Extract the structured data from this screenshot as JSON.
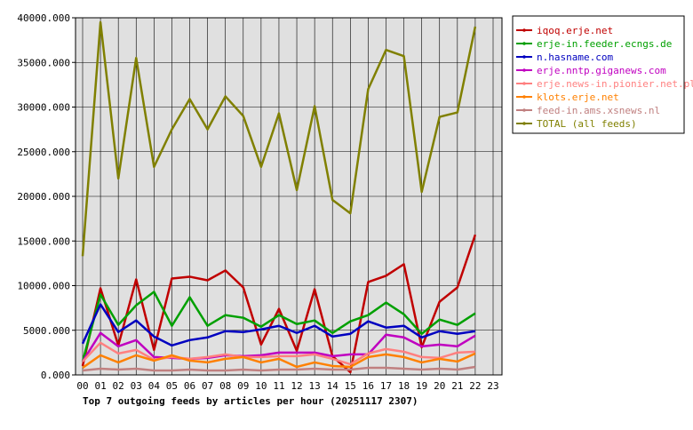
{
  "chart_data": {
    "type": "line",
    "title": "Top 7 outgoing feeds by articles per hour (20251117 2307)",
    "categories": [
      "00",
      "01",
      "02",
      "03",
      "04",
      "05",
      "06",
      "07",
      "08",
      "09",
      "10",
      "11",
      "12",
      "13",
      "14",
      "15",
      "16",
      "17",
      "18",
      "19",
      "20",
      "21",
      "22",
      "23"
    ],
    "ylim": [
      0,
      40000
    ],
    "yticks": [
      {
        "value": 0,
        "label": "0.000"
      },
      {
        "value": 5000,
        "label": "5000.000"
      },
      {
        "value": 10000,
        "label": "10000.000"
      },
      {
        "value": 15000,
        "label": "15000.000"
      },
      {
        "value": 20000,
        "label": "20000.000"
      },
      {
        "value": 25000,
        "label": "25000.000"
      },
      {
        "value": 30000,
        "label": "30000.000"
      },
      {
        "value": 35000,
        "label": "35000.000"
      },
      {
        "value": 40000,
        "label": "40000.000"
      }
    ],
    "grid": true,
    "legend": "right",
    "series": [
      {
        "name": "iqoq.erje.net",
        "color": "#c00000",
        "values": [
          1000,
          9700,
          3300,
          10700,
          2800,
          10800,
          11000,
          10600,
          11700,
          9800,
          3400,
          7400,
          2700,
          9600,
          2100,
          300,
          10400,
          11100,
          12400,
          3100,
          8200,
          9800,
          15700,
          null
        ]
      },
      {
        "name": "erje-in.feeder.ecngs.de",
        "color": "#00a000",
        "values": [
          1500,
          9000,
          5600,
          7800,
          9300,
          5500,
          8700,
          5500,
          6700,
          6400,
          5400,
          6700,
          5700,
          6100,
          4700,
          6000,
          6700,
          8100,
          6800,
          4600,
          6200,
          5600,
          6900,
          null
        ]
      },
      {
        "name": "n.hasname.com",
        "color": "#0000c0",
        "values": [
          3500,
          7900,
          4800,
          6100,
          4300,
          3300,
          3900,
          4200,
          4900,
          4800,
          5100,
          5500,
          4700,
          5500,
          4300,
          4600,
          6000,
          5300,
          5500,
          4200,
          4900,
          4600,
          4900,
          null
        ]
      },
      {
        "name": "erje.nntp.giganews.com",
        "color": "#c000c0",
        "values": [
          1500,
          4700,
          3200,
          3900,
          2000,
          1900,
          1800,
          1900,
          2200,
          2100,
          2200,
          2500,
          2500,
          2500,
          2100,
          2300,
          2300,
          4500,
          4200,
          3200,
          3400,
          3200,
          4400,
          null
        ]
      },
      {
        "name": "erje.news-in.pionier.net.pl",
        "color": "#ff8080",
        "values": [
          1500,
          3600,
          2400,
          2800,
          1700,
          2000,
          1800,
          2000,
          2300,
          2000,
          2000,
          2100,
          2100,
          2300,
          1800,
          1200,
          2400,
          2900,
          2600,
          2000,
          1900,
          2500,
          2600,
          null
        ]
      },
      {
        "name": "klots.erje.net",
        "color": "#ff8000",
        "values": [
          800,
          2200,
          1400,
          2200,
          1600,
          2200,
          1600,
          1400,
          1800,
          2000,
          1400,
          1800,
          900,
          1400,
          1000,
          900,
          2000,
          2300,
          2000,
          1400,
          1800,
          1500,
          2400,
          null
        ]
      },
      {
        "name": "feed-in.ams.xsnews.nl",
        "color": "#c08080",
        "values": [
          500,
          700,
          600,
          700,
          500,
          500,
          600,
          500,
          500,
          600,
          500,
          600,
          600,
          700,
          600,
          600,
          800,
          800,
          700,
          600,
          700,
          600,
          900,
          null
        ]
      },
      {
        "name": "TOTAL (all feeds)",
        "color": "#808000",
        "values": [
          13300,
          39500,
          22000,
          35500,
          23300,
          27500,
          30900,
          27500,
          31200,
          29000,
          23300,
          29300,
          20700,
          30100,
          19600,
          18100,
          32000,
          36400,
          35700,
          20500,
          28900,
          29400,
          39000,
          null
        ]
      }
    ]
  }
}
